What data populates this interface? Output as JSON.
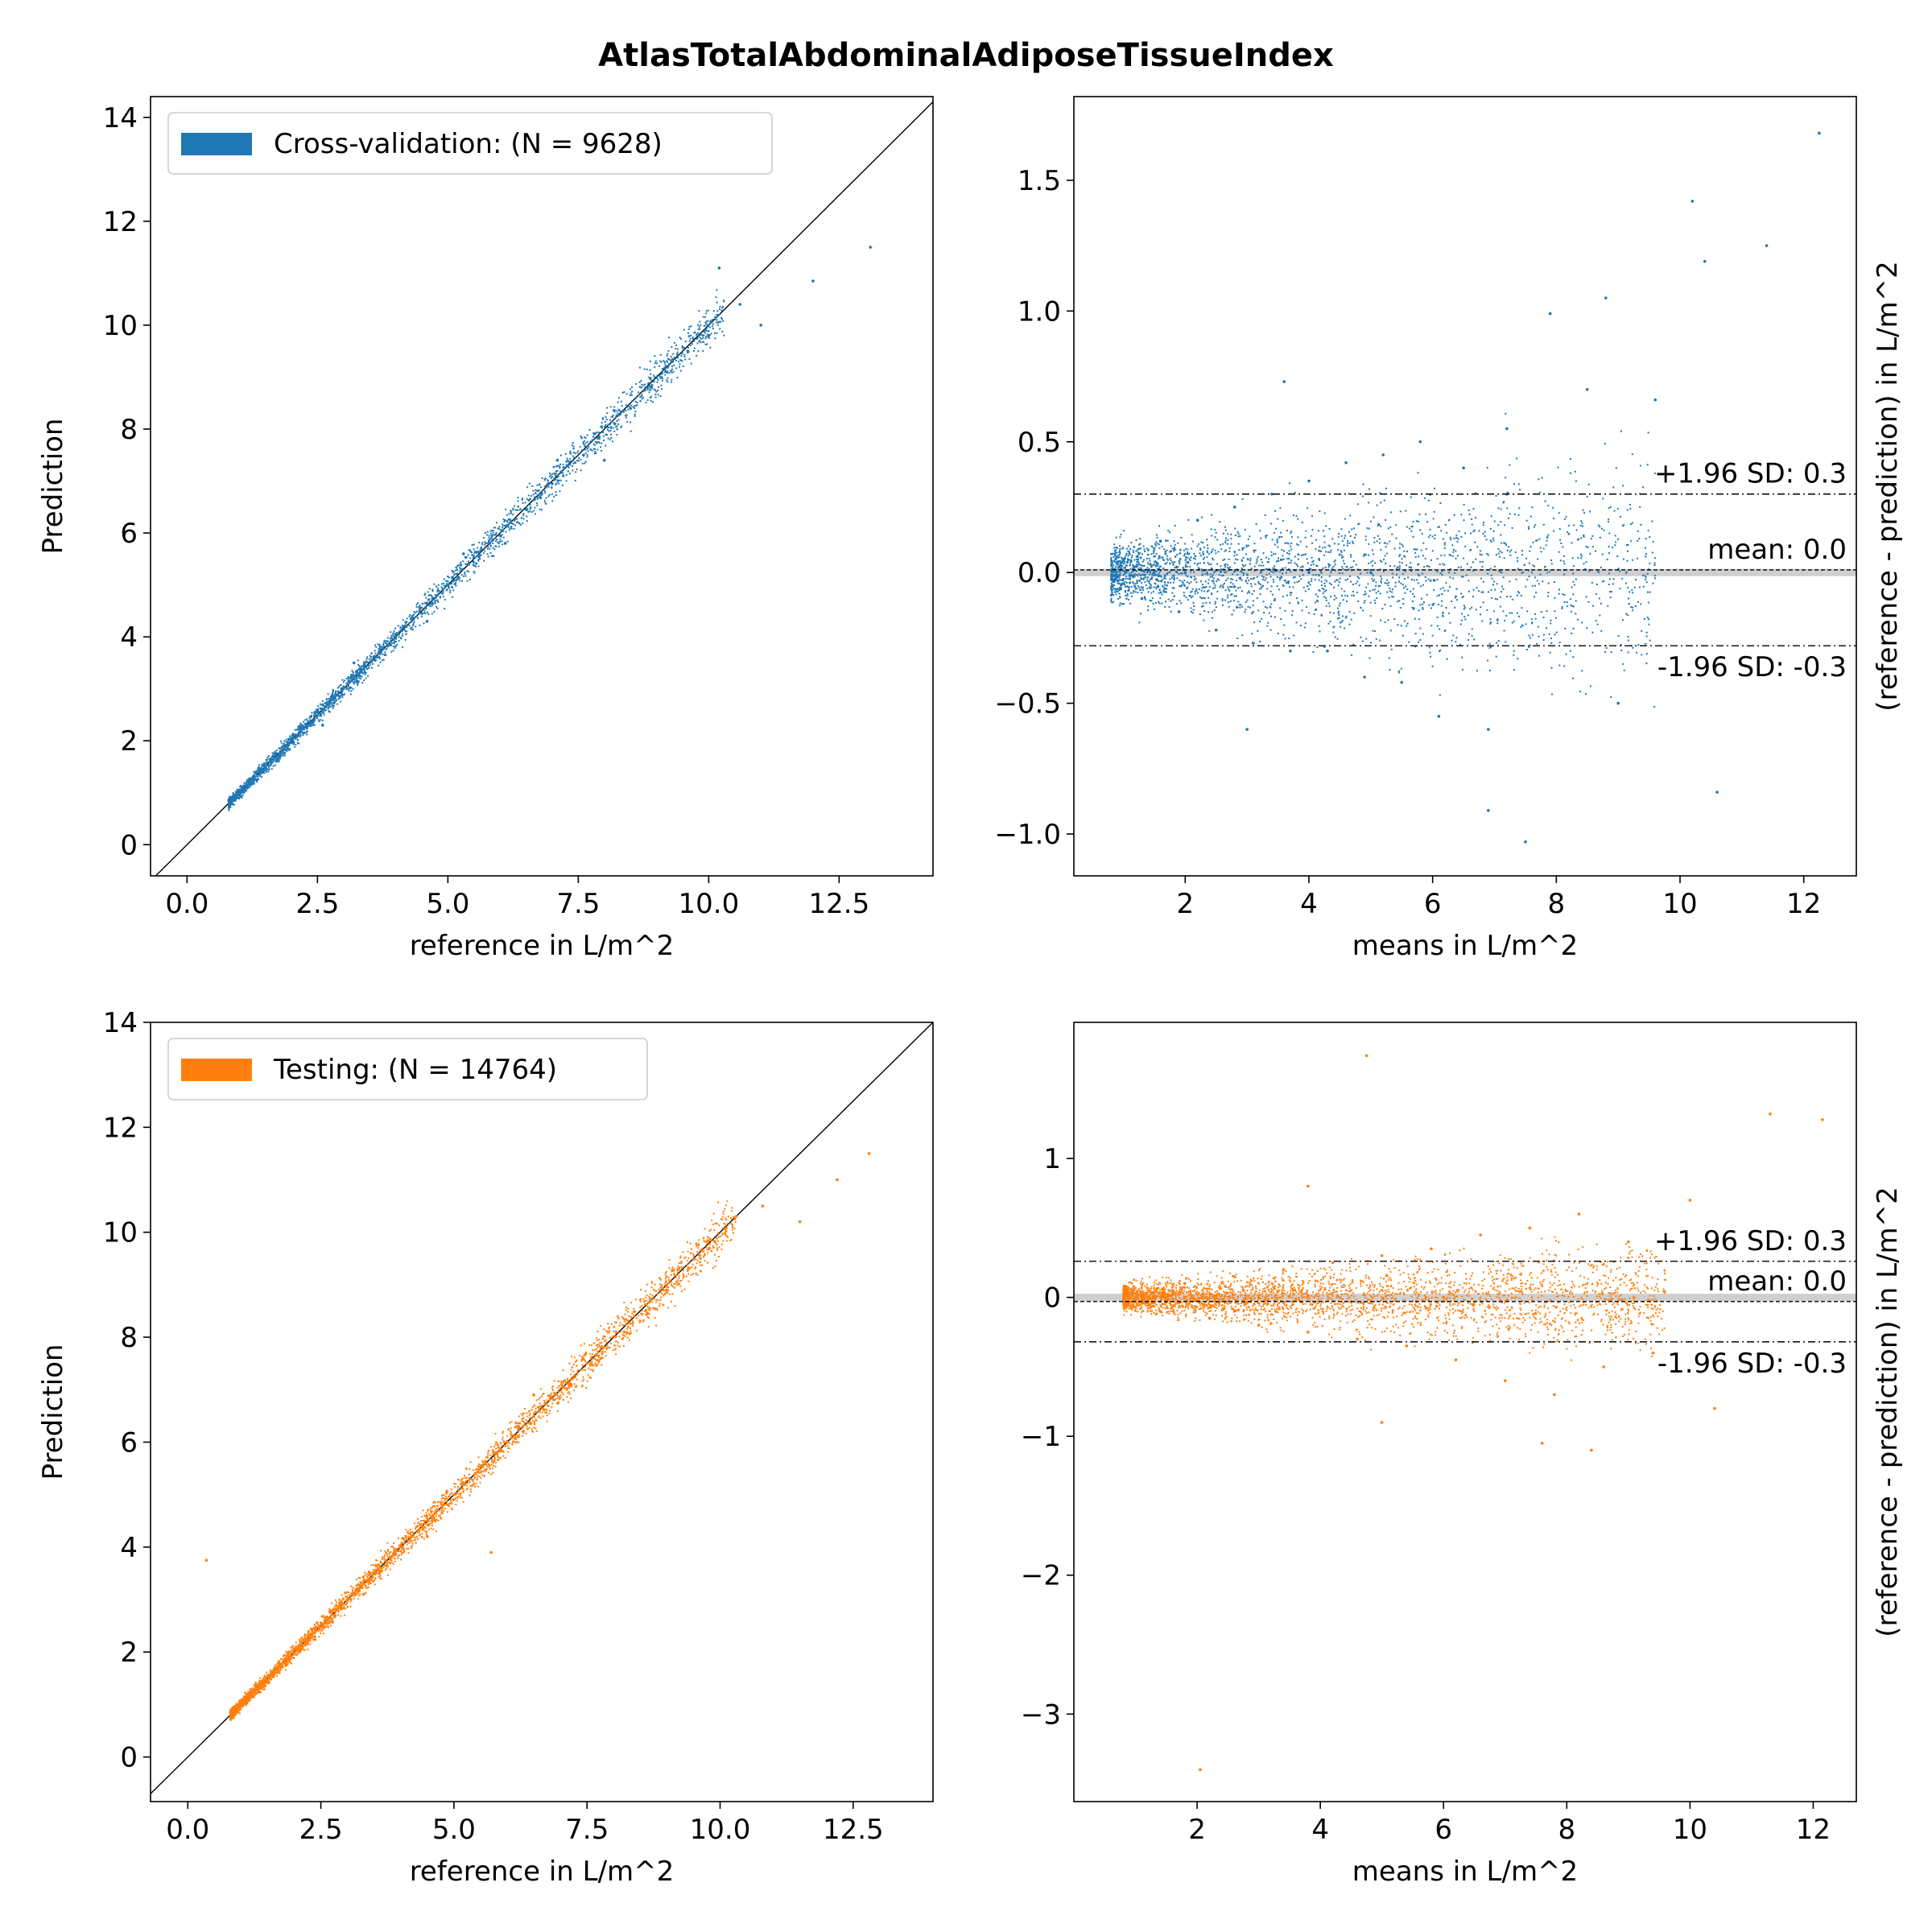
{
  "title": "AtlasTotalAbdominalAdiposeTissueIndex",
  "colors": {
    "cv": "#1f77b4",
    "test": "#ff7f0e",
    "ident": "#000000",
    "zero_band": "#cfcfcf"
  },
  "chart_data": [
    {
      "id": "cv_scatter",
      "type": "scatter",
      "xlabel": "reference in L/m^2",
      "ylabel": "Prediction",
      "xlim": [
        -0.7,
        14.3
      ],
      "ylim": [
        -0.6,
        14.4
      ],
      "xticks": [
        {
          "v": 0,
          "label": "0.0"
        },
        {
          "v": 2.5,
          "label": "2.5"
        },
        {
          "v": 5,
          "label": "5.0"
        },
        {
          "v": 7.5,
          "label": "7.5"
        },
        {
          "v": 10,
          "label": "10.0"
        },
        {
          "v": 12.5,
          "label": "12.5"
        }
      ],
      "yticks": [
        {
          "v": 0,
          "label": "0"
        },
        {
          "v": 2,
          "label": "2"
        },
        {
          "v": 4,
          "label": "4"
        },
        {
          "v": 6,
          "label": "6"
        },
        {
          "v": 8,
          "label": "8"
        },
        {
          "v": 10,
          "label": "10"
        },
        {
          "v": 12,
          "label": "12"
        },
        {
          "v": 14,
          "label": "14"
        }
      ],
      "legend": {
        "label": "Cross-validation: (N = 9628)",
        "placement": "upper-left"
      },
      "identity_line": true,
      "series": [
        {
          "color": "#1f77b4",
          "points": [
            [
              0.8,
              0.85
            ],
            [
              1.0,
              1.05
            ],
            [
              1.2,
              1.15
            ],
            [
              1.4,
              1.45
            ],
            [
              1.5,
              1.5
            ],
            [
              1.7,
              1.75
            ],
            [
              1.8,
              1.8
            ],
            [
              2.0,
              2.05
            ],
            [
              2.1,
              2.1
            ],
            [
              2.2,
              2.25
            ],
            [
              2.4,
              2.35
            ],
            [
              2.5,
              2.55
            ],
            [
              2.7,
              2.7
            ],
            [
              2.8,
              2.85
            ],
            [
              3.0,
              3.0
            ],
            [
              3.1,
              3.15
            ],
            [
              3.3,
              3.25
            ],
            [
              3.4,
              3.45
            ],
            [
              3.6,
              3.55
            ],
            [
              3.7,
              3.75
            ],
            [
              3.9,
              3.85
            ],
            [
              4.0,
              4.05
            ],
            [
              4.2,
              4.2
            ],
            [
              4.3,
              4.35
            ],
            [
              4.5,
              4.45
            ],
            [
              4.6,
              4.65
            ],
            [
              4.8,
              4.8
            ],
            [
              5.0,
              5.0
            ],
            [
              5.2,
              5.15
            ],
            [
              5.4,
              5.4
            ],
            [
              5.6,
              5.55
            ],
            [
              5.8,
              5.8
            ],
            [
              6.0,
              5.95
            ],
            [
              6.2,
              6.2
            ],
            [
              6.5,
              6.45
            ],
            [
              6.8,
              6.75
            ],
            [
              7.0,
              6.95
            ],
            [
              7.3,
              7.3
            ],
            [
              7.6,
              7.5
            ],
            [
              7.9,
              7.85
            ],
            [
              8.2,
              8.1
            ],
            [
              8.5,
              8.4
            ],
            [
              8.9,
              8.8
            ],
            [
              9.2,
              9.1
            ],
            [
              9.6,
              9.5
            ],
            [
              10.0,
              9.8
            ],
            [
              10.6,
              10.4
            ],
            [
              11.0,
              10.0
            ],
            [
              12.0,
              10.85
            ],
            [
              13.1,
              11.5
            ],
            [
              10.2,
              11.1
            ],
            [
              4.6,
              4.3
            ],
            [
              3.2,
              3.5
            ],
            [
              6.1,
              5.8
            ],
            [
              7.1,
              7.4
            ],
            [
              8.0,
              7.4
            ],
            [
              2.6,
              2.3
            ],
            [
              5.3,
              5.6
            ]
          ]
        }
      ]
    },
    {
      "id": "cv_bland_altman",
      "type": "scatter",
      "xlabel": "means in L/m^2",
      "ylabel": "(reference - prediction) in L/m^2",
      "xlim": [
        0.2,
        12.85
      ],
      "ylim": [
        -1.16,
        1.82
      ],
      "xticks": [
        {
          "v": 2,
          "label": "2"
        },
        {
          "v": 4,
          "label": "4"
        },
        {
          "v": 6,
          "label": "6"
        },
        {
          "v": 8,
          "label": "8"
        },
        {
          "v": 10,
          "label": "10"
        },
        {
          "v": 12,
          "label": "12"
        }
      ],
      "yticks": [
        {
          "v": -1,
          "label": "−1.0"
        },
        {
          "v": -0.5,
          "label": "−0.5"
        },
        {
          "v": 0,
          "label": "0.0"
        },
        {
          "v": 0.5,
          "label": "0.5"
        },
        {
          "v": 1,
          "label": "1.0"
        },
        {
          "v": 1.5,
          "label": "1.5"
        }
      ],
      "hlines": [
        {
          "y": 0.3,
          "style": "dashdot",
          "label": "+1.96 SD: 0.3"
        },
        {
          "y": 0.01,
          "style": "dashed",
          "label": "mean: 0.0"
        },
        {
          "y": -0.28,
          "style": "dashdot",
          "label": "-1.96 SD: -0.3"
        }
      ],
      "zero_line": true,
      "series": [
        {
          "color": "#1f77b4",
          "points": [
            [
              1.0,
              0.05
            ],
            [
              1.3,
              -0.1
            ],
            [
              1.6,
              0.12
            ],
            [
              1.9,
              -0.15
            ],
            [
              2.2,
              0.2
            ],
            [
              2.5,
              -0.22
            ],
            [
              2.8,
              0.25
            ],
            [
              3.1,
              -0.27
            ],
            [
              3.4,
              0.3
            ],
            [
              3.7,
              -0.3
            ],
            [
              4.0,
              0.35
            ],
            [
              4.3,
              -0.3
            ],
            [
              4.6,
              0.42
            ],
            [
              4.9,
              -0.4
            ],
            [
              5.2,
              0.45
            ],
            [
              5.5,
              -0.42
            ],
            [
              5.8,
              0.5
            ],
            [
              6.1,
              -0.55
            ],
            [
              6.5,
              0.4
            ],
            [
              6.9,
              -0.6
            ],
            [
              7.2,
              0.55
            ],
            [
              7.5,
              -1.03
            ],
            [
              6.9,
              -0.91
            ],
            [
              7.9,
              0.99
            ],
            [
              8.8,
              1.05
            ],
            [
              10.2,
              1.42
            ],
            [
              10.4,
              1.19
            ],
            [
              11.4,
              1.25
            ],
            [
              12.25,
              1.68
            ],
            [
              10.6,
              -0.84
            ],
            [
              3.0,
              -0.6
            ],
            [
              3.6,
              0.73
            ],
            [
              8.5,
              0.7
            ],
            [
              9.6,
              0.66
            ],
            [
              9.0,
              -0.5
            ],
            [
              5.0,
              0.0
            ],
            [
              2.0,
              0.0
            ],
            [
              4.0,
              0.0
            ]
          ]
        }
      ]
    },
    {
      "id": "test_scatter",
      "type": "scatter",
      "xlabel": "reference in L/m^2",
      "ylabel": "Prediction",
      "xlim": [
        -0.7,
        14.0
      ],
      "ylim": [
        -0.85,
        14.0
      ],
      "xticks": [
        {
          "v": 0,
          "label": "0.0"
        },
        {
          "v": 2.5,
          "label": "2.5"
        },
        {
          "v": 5,
          "label": "5.0"
        },
        {
          "v": 7.5,
          "label": "7.5"
        },
        {
          "v": 10,
          "label": "10.0"
        },
        {
          "v": 12.5,
          "label": "12.5"
        }
      ],
      "yticks": [
        {
          "v": 0,
          "label": "0"
        },
        {
          "v": 2,
          "label": "2"
        },
        {
          "v": 4,
          "label": "4"
        },
        {
          "v": 6,
          "label": "6"
        },
        {
          "v": 8,
          "label": "8"
        },
        {
          "v": 10,
          "label": "10"
        },
        {
          "v": 12,
          "label": "12"
        },
        {
          "v": 14,
          "label": "14"
        }
      ],
      "legend": {
        "label": "Testing: (N = 14764)",
        "placement": "upper-left"
      },
      "identity_line": true,
      "series": [
        {
          "color": "#ff7f0e",
          "points": [
            [
              0.8,
              0.85
            ],
            [
              1.0,
              1.05
            ],
            [
              1.2,
              1.15
            ],
            [
              1.4,
              1.45
            ],
            [
              1.6,
              1.55
            ],
            [
              1.8,
              1.8
            ],
            [
              2.0,
              2.05
            ],
            [
              2.2,
              2.2
            ],
            [
              2.4,
              2.4
            ],
            [
              2.6,
              2.6
            ],
            [
              2.8,
              2.8
            ],
            [
              3.0,
              3.0
            ],
            [
              3.2,
              3.2
            ],
            [
              3.4,
              3.4
            ],
            [
              3.6,
              3.55
            ],
            [
              3.8,
              3.8
            ],
            [
              4.0,
              4.0
            ],
            [
              4.2,
              4.2
            ],
            [
              4.4,
              4.4
            ],
            [
              4.6,
              4.6
            ],
            [
              4.8,
              4.8
            ],
            [
              5.0,
              5.0
            ],
            [
              5.2,
              5.2
            ],
            [
              5.4,
              5.4
            ],
            [
              5.6,
              5.6
            ],
            [
              5.8,
              5.8
            ],
            [
              6.0,
              6.0
            ],
            [
              6.3,
              6.3
            ],
            [
              6.6,
              6.6
            ],
            [
              6.9,
              6.9
            ],
            [
              7.2,
              7.1
            ],
            [
              7.5,
              7.5
            ],
            [
              7.8,
              7.8
            ],
            [
              8.2,
              8.1
            ],
            [
              8.6,
              8.5
            ],
            [
              9.0,
              8.9
            ],
            [
              9.4,
              9.3
            ],
            [
              9.8,
              9.7
            ],
            [
              10.3,
              10.3
            ],
            [
              10.8,
              10.5
            ],
            [
              11.5,
              10.2
            ],
            [
              12.2,
              11.0
            ],
            [
              12.8,
              11.5
            ],
            [
              0.35,
              3.75
            ],
            [
              5.7,
              3.9
            ],
            [
              4.5,
              4.2
            ],
            [
              6.5,
              6.9
            ],
            [
              3.3,
              3.1
            ]
          ]
        }
      ]
    },
    {
      "id": "test_bland_altman",
      "type": "scatter",
      "xlabel": "means in L/m^2",
      "ylabel": "(reference - prediction) in L/m^2",
      "xlim": [
        0.0,
        12.7
      ],
      "ylim": [
        -3.63,
        1.98
      ],
      "xticks": [
        {
          "v": 2,
          "label": "2"
        },
        {
          "v": 4,
          "label": "4"
        },
        {
          "v": 6,
          "label": "6"
        },
        {
          "v": 8,
          "label": "8"
        },
        {
          "v": 10,
          "label": "10"
        },
        {
          "v": 12,
          "label": "12"
        }
      ],
      "yticks": [
        {
          "v": -3,
          "label": "−3"
        },
        {
          "v": -2,
          "label": "−2"
        },
        {
          "v": -1,
          "label": "−1"
        },
        {
          "v": 0,
          "label": "0"
        },
        {
          "v": 1,
          "label": "1"
        }
      ],
      "hlines": [
        {
          "y": 0.26,
          "style": "dashdot",
          "label": "+1.96 SD: 0.3"
        },
        {
          "y": -0.03,
          "style": "dashed",
          "label": "mean: 0.0"
        },
        {
          "y": -0.32,
          "style": "dashdot",
          "label": "-1.96 SD: -0.3"
        }
      ],
      "zero_line": true,
      "series": [
        {
          "color": "#ff7f0e",
          "points": [
            [
              1.0,
              0.0
            ],
            [
              1.4,
              -0.1
            ],
            [
              1.8,
              0.1
            ],
            [
              2.2,
              -0.15
            ],
            [
              2.6,
              0.15
            ],
            [
              3.0,
              -0.2
            ],
            [
              3.4,
              0.2
            ],
            [
              3.8,
              -0.25
            ],
            [
              4.2,
              0.25
            ],
            [
              4.6,
              -0.3
            ],
            [
              5.0,
              0.3
            ],
            [
              5.4,
              -0.35
            ],
            [
              5.8,
              0.35
            ],
            [
              6.2,
              -0.45
            ],
            [
              6.6,
              0.45
            ],
            [
              7.0,
              -0.6
            ],
            [
              7.4,
              0.5
            ],
            [
              7.8,
              -0.7
            ],
            [
              8.2,
              0.6
            ],
            [
              8.6,
              -0.5
            ],
            [
              9.0,
              0.4
            ],
            [
              9.4,
              -0.4
            ],
            [
              10.0,
              0.7
            ],
            [
              10.4,
              -0.8
            ],
            [
              11.3,
              1.32
            ],
            [
              12.15,
              1.28
            ],
            [
              4.75,
              1.74
            ],
            [
              2.05,
              -3.4
            ],
            [
              7.6,
              -1.05
            ],
            [
              8.4,
              -1.1
            ],
            [
              3.8,
              0.8
            ],
            [
              5.0,
              -0.9
            ],
            [
              6.0,
              0.0
            ],
            [
              3.0,
              0.0
            ]
          ]
        }
      ]
    }
  ]
}
